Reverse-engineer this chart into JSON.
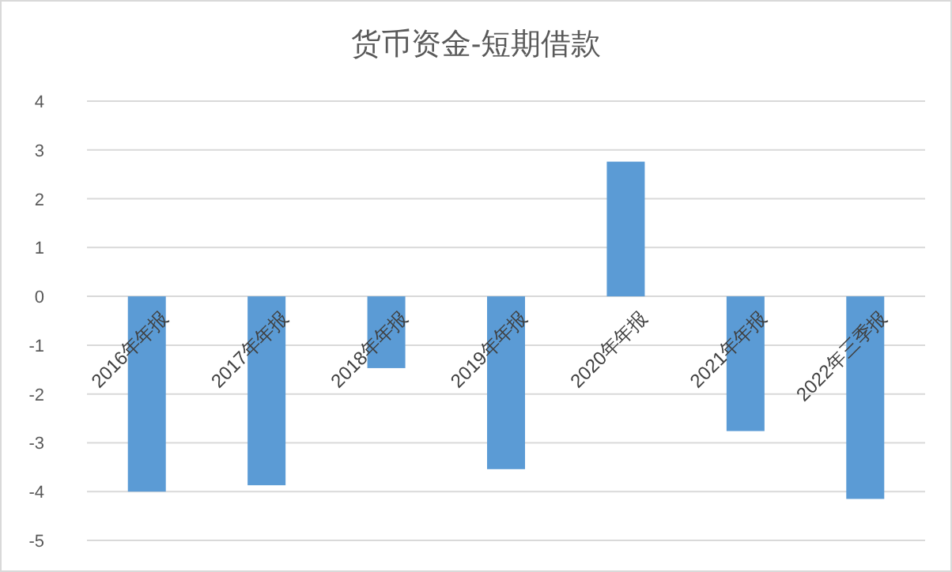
{
  "chart_data": {
    "type": "bar",
    "title": "货币资金-短期借款",
    "categories": [
      "2016年年报",
      "2017年年报",
      "2018年年报",
      "2019年年报",
      "2020年年报",
      "2021年年报",
      "2022年三季报"
    ],
    "values": [
      -4.0,
      -3.87,
      -1.47,
      -3.54,
      2.76,
      -2.76,
      -4.15
    ],
    "color": "#5b9bd5",
    "ylim": [
      -5,
      4
    ],
    "yticks": [
      -5,
      -4,
      -3,
      -2,
      -1,
      0,
      1,
      2,
      3,
      4
    ],
    "grid": "y"
  }
}
